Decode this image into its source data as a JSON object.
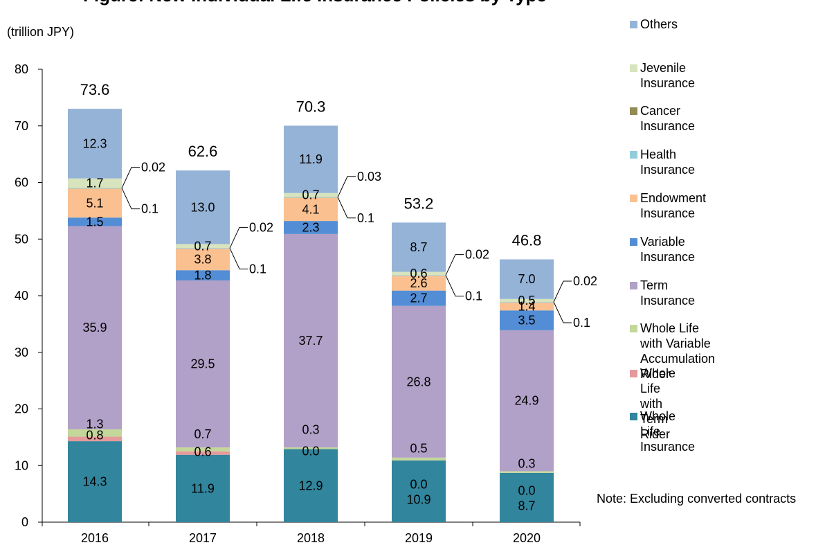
{
  "chart_data": {
    "type": "bar",
    "stacked": true,
    "title": "Figure: New Individual Life Insurance Policies by Type",
    "unit_label": "(trillion JPY)",
    "note": "Note: Excluding converted contracts",
    "categories": [
      "2016",
      "2017",
      "2018",
      "2019",
      "2020"
    ],
    "ylim": [
      0,
      80
    ],
    "yticks": [
      0,
      10,
      20,
      30,
      40,
      50,
      60,
      70,
      80
    ],
    "totals": [
      "73.6",
      "62.6",
      "70.3",
      "53.2",
      "46.8"
    ],
    "series": [
      {
        "name": "Whole Life Insurance",
        "color": "#31859C",
        "values": [
          14.3,
          11.9,
          12.9,
          10.9,
          8.7
        ],
        "labels": [
          "14.3",
          "11.9",
          "12.9",
          "10.9",
          "8.7"
        ]
      },
      {
        "name": "Whole Life with Term Rider",
        "color": "#E6999A",
        "values": [
          0.8,
          0.6,
          0.0,
          0.0,
          0.0
        ],
        "labels": [
          "0.8",
          "0.6",
          "0.0",
          "0.0",
          "0.0"
        ]
      },
      {
        "name": "Whole Life with Variable\nAccumulation Rider",
        "color": "#C4D79B",
        "values": [
          1.3,
          0.7,
          0.3,
          0.5,
          0.3
        ],
        "labels": [
          "1.3",
          "0.7",
          "0.3",
          "0.5",
          "0.3"
        ]
      },
      {
        "name": "Term Insurance",
        "color": "#B1A0C7",
        "values": [
          35.9,
          29.5,
          37.7,
          26.8,
          24.9
        ],
        "labels": [
          "35.9",
          "29.5",
          "37.7",
          "26.8",
          "24.9"
        ]
      },
      {
        "name": "Variable Insurance",
        "color": "#538DD5",
        "values": [
          1.5,
          1.8,
          2.3,
          2.7,
          3.5
        ],
        "labels": [
          "1.5",
          "1.8",
          "2.3",
          "2.7",
          "3.5"
        ]
      },
      {
        "name": "Endowment Insurance",
        "color": "#FAC090",
        "values": [
          5.1,
          3.8,
          4.1,
          2.6,
          1.4
        ],
        "labels": [
          "5.1",
          "3.8",
          "4.1",
          "2.6",
          "1.4"
        ]
      },
      {
        "name": "Health Insurance",
        "color": "#92CDDC",
        "values": [
          0.1,
          0.1,
          0.1,
          0.1,
          0.1
        ],
        "labels": [
          "0.1",
          "0.1",
          "0.1",
          "0.1",
          "0.1"
        ]
      },
      {
        "name": "Cancer Insurance",
        "color": "#948A54",
        "values": [
          0.02,
          0.02,
          0.03,
          0.02,
          0.02
        ],
        "labels": [
          "0.02",
          "0.02",
          "0.03",
          "0.02",
          "0.02"
        ]
      },
      {
        "name": "Jevenile Insurance",
        "color": "#D7E4BD",
        "values": [
          1.7,
          0.7,
          0.7,
          0.6,
          0.5
        ],
        "labels": [
          "1.7",
          "0.7",
          "0.7",
          "0.6",
          "0.5"
        ]
      },
      {
        "name": "Others",
        "color": "#95B3D7",
        "values": [
          12.3,
          13.0,
          11.9,
          8.7,
          7.0
        ],
        "labels": [
          "12.3",
          "13.0",
          "11.9",
          "8.7",
          "7.0"
        ]
      }
    ]
  }
}
